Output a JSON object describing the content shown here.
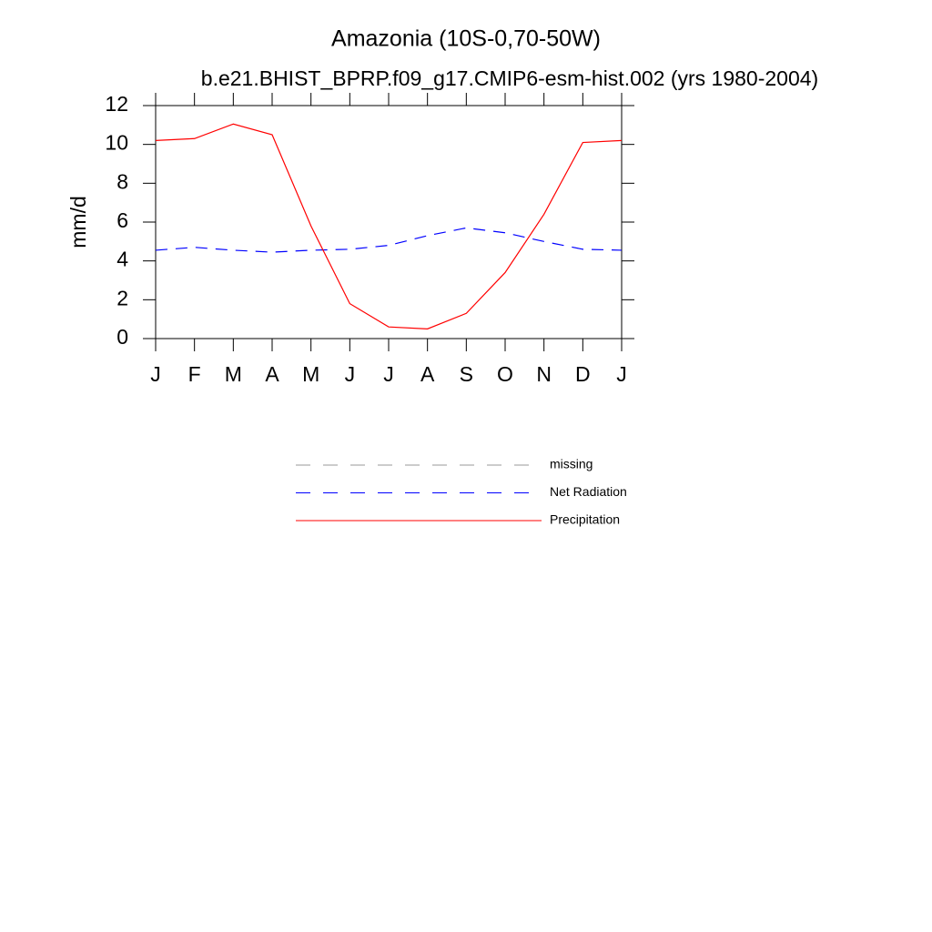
{
  "chart_data": {
    "type": "line",
    "title": "Amazonia (10S-0,70-50W)",
    "subtitle": "b.e21.BHIST_BPRP.f09_g17.CMIP6-esm-hist.002 (yrs 1980-2004)",
    "y_label": "mm/d",
    "categories": [
      "J",
      "F",
      "M",
      "A",
      "M",
      "J",
      "J",
      "A",
      "S",
      "O",
      "N",
      "D",
      "J"
    ],
    "ylim": [
      0,
      12
    ],
    "yticks": [
      0,
      2,
      4,
      6,
      8,
      10,
      12
    ],
    "series": [
      {
        "name": "missing",
        "color": "#999999",
        "linestyle": "dashed",
        "values": [
          null,
          null,
          null,
          null,
          null,
          null,
          null,
          null,
          null,
          null,
          null,
          null,
          null
        ]
      },
      {
        "name": "Net Radiation",
        "color": "#0000ff",
        "linestyle": "dashed",
        "values": [
          4.55,
          4.7,
          4.55,
          4.45,
          4.55,
          4.6,
          4.8,
          5.3,
          5.7,
          5.45,
          5.0,
          4.6,
          4.55
        ]
      },
      {
        "name": "Precipitation",
        "color": "#ff0000",
        "linestyle": "solid",
        "values": [
          10.2,
          10.3,
          11.05,
          10.5,
          5.8,
          1.8,
          0.6,
          0.5,
          1.3,
          3.4,
          6.4,
          10.1,
          10.2
        ]
      }
    ]
  }
}
